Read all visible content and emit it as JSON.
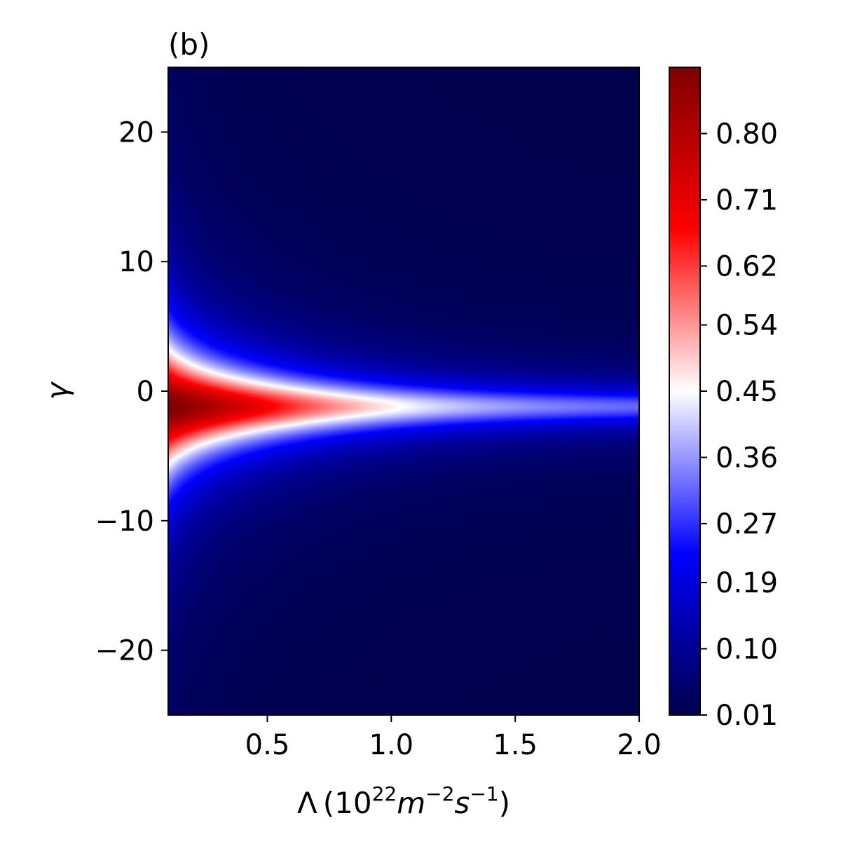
{
  "chart_data": {
    "type": "heatmap",
    "panel_label": "(b)",
    "xlabel": {
      "base": "Λ",
      "unit_open": "(10",
      "unit_exp1": "22",
      "unit_m": "m",
      "unit_exp2": "−2",
      "unit_s": "s",
      "unit_exp3": "−1",
      "unit_close": ")"
    },
    "ylabel": "γ",
    "xlim": [
      0.1,
      2.0
    ],
    "ylim": [
      -25,
      25
    ],
    "x_ticks": [
      {
        "value": 0.5,
        "label": "0.5"
      },
      {
        "value": 1.0,
        "label": "1.0"
      },
      {
        "value": 1.5,
        "label": "1.5"
      },
      {
        "value": 2.0,
        "label": "2.0"
      }
    ],
    "y_ticks": [
      {
        "value": 20,
        "label": "20"
      },
      {
        "value": 10,
        "label": "10"
      },
      {
        "value": 0,
        "label": "0"
      },
      {
        "value": -10,
        "label": "−10"
      },
      {
        "value": -20,
        "label": "−20"
      }
    ],
    "colormap": "seismic",
    "colormap_stops": [
      {
        "t": 0.0,
        "color": "#00004c"
      },
      {
        "t": 0.25,
        "color": "#0000ff"
      },
      {
        "t": 0.5,
        "color": "#ffffff"
      },
      {
        "t": 0.75,
        "color": "#ff0000"
      },
      {
        "t": 1.0,
        "color": "#800000"
      }
    ],
    "value_range": [
      0.01,
      0.89
    ],
    "colorbar_ticks": [
      {
        "value": 0.01,
        "label": "0.01"
      },
      {
        "value": 0.1,
        "label": "0.10"
      },
      {
        "value": 0.19,
        "label": "0.19"
      },
      {
        "value": 0.27,
        "label": "0.27"
      },
      {
        "value": 0.36,
        "label": "0.36"
      },
      {
        "value": 0.45,
        "label": "0.45"
      },
      {
        "value": 0.54,
        "label": "0.54"
      },
      {
        "value": 0.62,
        "label": "0.62"
      },
      {
        "value": 0.71,
        "label": "0.71"
      },
      {
        "value": 0.8,
        "label": "0.80"
      }
    ],
    "field": {
      "peak_value": 0.89,
      "peak_gamma": -1.2,
      "peak_lambda": 0.1,
      "ridge_value_at_lambda_2": 0.3,
      "background_value": 0.01
    }
  }
}
